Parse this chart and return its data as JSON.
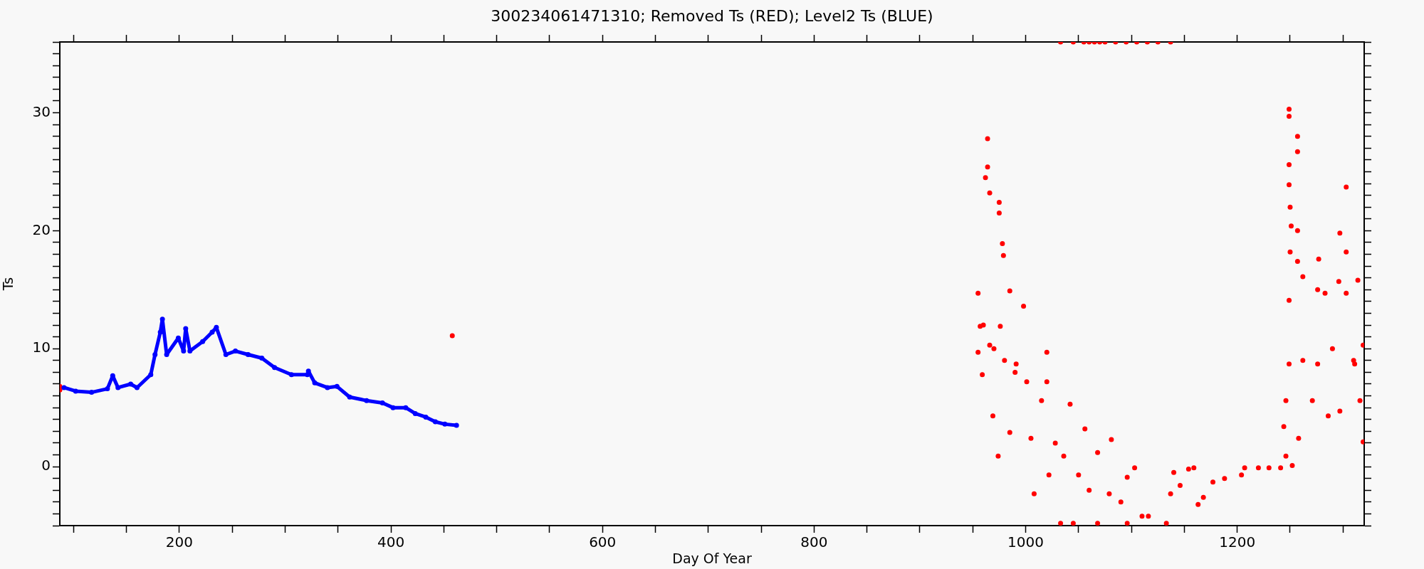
{
  "chart_data": {
    "type": "scatter",
    "title": "300234061471310; Removed Ts (RED); Level2 Ts (BLUE)",
    "xlabel": "Day Of Year",
    "ylabel": "Ts",
    "marker": "circle",
    "legend": false,
    "grid": false,
    "xlim": [
      87,
      1320
    ],
    "ylim": [
      -5,
      36
    ],
    "xticks": [
      {
        "value": 100,
        "label": null
      },
      {
        "value": 150,
        "label": null
      },
      200,
      {
        "value": 250,
        "label": null
      },
      {
        "value": 300,
        "label": null
      },
      {
        "value": 350,
        "label": null
      },
      400,
      {
        "value": 450,
        "label": null
      },
      {
        "value": 500,
        "label": null
      },
      {
        "value": 550,
        "label": null
      },
      600,
      {
        "value": 650,
        "label": null
      },
      {
        "value": 700,
        "label": null
      },
      {
        "value": 750,
        "label": null
      },
      800,
      {
        "value": 850,
        "label": null
      },
      {
        "value": 900,
        "label": null
      },
      {
        "value": 950,
        "label": null
      },
      1000,
      {
        "value": 1050,
        "label": null
      },
      {
        "value": 1100,
        "label": null
      },
      {
        "value": 1150,
        "label": null
      },
      1200,
      {
        "value": 1250,
        "label": null
      },
      {
        "value": 1300,
        "label": null
      }
    ],
    "yticks": [
      {
        "value": -5,
        "label": null
      },
      {
        "value": -4,
        "label": null
      },
      {
        "value": -3,
        "label": null
      },
      {
        "value": -2,
        "label": null
      },
      {
        "value": -1,
        "label": null
      },
      0,
      {
        "value": 1,
        "label": null
      },
      {
        "value": 2,
        "label": null
      },
      {
        "value": 3,
        "label": null
      },
      {
        "value": 4,
        "label": null
      },
      {
        "value": 5,
        "label": null
      },
      {
        "value": 6,
        "label": null
      },
      {
        "value": 7,
        "label": null
      },
      {
        "value": 8,
        "label": null
      },
      {
        "value": 9,
        "label": null
      },
      10,
      {
        "value": 11,
        "label": null
      },
      {
        "value": 12,
        "label": null
      },
      {
        "value": 13,
        "label": null
      },
      {
        "value": 14,
        "label": null
      },
      {
        "value": 15,
        "label": null
      },
      {
        "value": 16,
        "label": null
      },
      {
        "value": 17,
        "label": null
      },
      {
        "value": 18,
        "label": null
      },
      {
        "value": 19,
        "label": null
      },
      20,
      {
        "value": 21,
        "label": null
      },
      {
        "value": 22,
        "label": null
      },
      {
        "value": 23,
        "label": null
      },
      {
        "value": 24,
        "label": null
      },
      {
        "value": 25,
        "label": null
      },
      {
        "value": 26,
        "label": null
      },
      {
        "value": 27,
        "label": null
      },
      {
        "value": 28,
        "label": null
      },
      {
        "value": 29,
        "label": null
      },
      30,
      {
        "value": 31,
        "label": null
      },
      {
        "value": 32,
        "label": null
      },
      {
        "value": 33,
        "label": null
      },
      {
        "value": 34,
        "label": null
      },
      {
        "value": 35,
        "label": null
      },
      {
        "value": 36,
        "label": null
      }
    ],
    "series": [
      {
        "type": "line",
        "color": "#0000ff",
        "x": [
          91,
          102,
          117,
          132,
          137,
          142,
          154,
          160,
          173,
          177,
          182,
          184,
          188,
          199,
          204,
          206,
          210,
          222,
          231,
          235,
          244,
          253,
          265,
          278,
          290,
          306,
          321,
          322,
          328,
          340,
          349,
          361,
          377,
          392,
          402,
          414,
          423,
          433,
          442,
          451,
          462
        ],
        "values": [
          6.7,
          6.4,
          6.3,
          6.6,
          7.7,
          6.7,
          7.0,
          6.7,
          7.8,
          9.5,
          11.4,
          12.5,
          9.5,
          10.9,
          9.8,
          11.7,
          9.8,
          10.6,
          11.4,
          11.8,
          9.5,
          9.8,
          9.5,
          9.2,
          8.4,
          7.8,
          7.8,
          8.1,
          7.1,
          6.7,
          6.8,
          5.9,
          5.6,
          5.4,
          5.0,
          5.0,
          4.5,
          4.2,
          3.8,
          3.6,
          3.5
        ]
      },
      {
        "color": "#ff0000",
        "x": [
          87,
          87,
          458,
          964,
          964,
          962,
          966,
          975,
          975,
          978,
          979,
          955,
          957,
          955,
          959,
          969,
          974,
          985,
          998,
          985,
          966,
          976,
          991,
          1001,
          960,
          970,
          980,
          990,
          1008,
          1005,
          1020,
          1020,
          1015,
          1022,
          1033,
          1042,
          1036,
          1045,
          1056,
          1050,
          1068,
          1068,
          1081,
          1079,
          1096,
          1103,
          1096,
          1110,
          1116,
          1028,
          1060,
          1090,
          1033,
          1045,
          1055,
          1060,
          1065,
          1070,
          1075,
          1085,
          1095,
          1105,
          1115,
          1125,
          1137,
          1133,
          1137,
          1140,
          1146,
          1154,
          1159,
          1163,
          1168,
          1177,
          1188,
          1204,
          1207,
          1220,
          1230,
          1241,
          1246,
          1244,
          1246,
          1249,
          1249,
          1257,
          1257,
          1249,
          1249,
          1250,
          1251,
          1257,
          1250,
          1257,
          1262,
          1249,
          1249,
          1252,
          1258,
          1271,
          1277,
          1276,
          1283,
          1276,
          1286,
          1297,
          1296,
          1303,
          1303,
          1303,
          1297,
          1314,
          1311,
          1316,
          1319,
          1319,
          1262,
          1290,
          1310
        ],
        "values": [
          6.5,
          6.8,
          11.1,
          27.8,
          25.4,
          24.5,
          23.2,
          22.4,
          21.5,
          18.9,
          17.9,
          14.7,
          11.9,
          9.7,
          7.8,
          4.3,
          0.9,
          14.9,
          13.6,
          2.9,
          10.3,
          11.9,
          8.7,
          7.2,
          12,
          10,
          9,
          8,
          -2.3,
          2.4,
          9.7,
          7.2,
          5.6,
          -0.7,
          -4.8,
          5.3,
          0.9,
          -4.8,
          3.2,
          -0.7,
          1.2,
          -4.8,
          2.3,
          -2.3,
          -0.9,
          -0.1,
          -4.8,
          -4.2,
          -4.2,
          2,
          -2,
          -3,
          36,
          36,
          36,
          36,
          36,
          36,
          36,
          36,
          36,
          36,
          36,
          36,
          36,
          -4.8,
          -2.3,
          -0.5,
          -1.6,
          -0.2,
          -0.1,
          -3.2,
          -2.6,
          -1.3,
          -1.0,
          -0.7,
          -0.1,
          -0.1,
          -0.1,
          -0.1,
          0.9,
          3.4,
          5.6,
          30.3,
          29.7,
          28.0,
          26.7,
          25.6,
          23.9,
          22.0,
          20.4,
          20.0,
          18.2,
          17.4,
          16.1,
          14.1,
          8.7,
          0.1,
          2.4,
          5.6,
          17.6,
          15.0,
          14.7,
          8.7,
          4.3,
          19.8,
          15.7,
          23.7,
          18.2,
          14.7,
          4.7,
          15.8,
          8.7,
          5.6,
          2.1,
          10.3,
          9,
          10,
          9
        ]
      }
    ]
  }
}
